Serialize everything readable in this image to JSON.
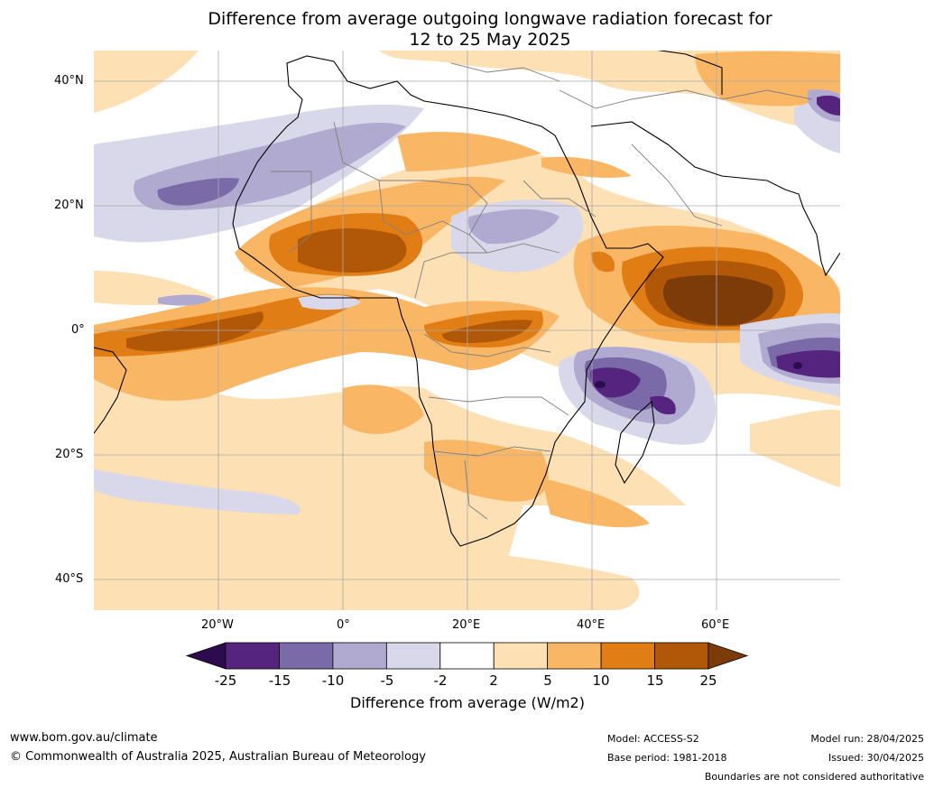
{
  "title_line1": "Difference from average outgoing longwave radiation forecast for",
  "title_line2": "12 to 25 May 2025",
  "lat_ticks": [
    "40°N",
    "20°N",
    "0°",
    "20°S",
    "40°S"
  ],
  "lon_ticks": [
    "20°W",
    "0°",
    "20°E",
    "40°E",
    "60°E"
  ],
  "colorbar": {
    "labels": [
      "-25",
      "-15",
      "-10",
      "-5",
      "-2",
      "2",
      "5",
      "10",
      "15",
      "25"
    ],
    "colors": [
      "#2d0b4e",
      "#54247f",
      "#7b6aa8",
      "#b0a9d0",
      "#d8d8ea",
      "#ffffff",
      "#fde0b4",
      "#f9b665",
      "#e07e15",
      "#b15708",
      "#7d3b0a"
    ],
    "title": "Difference from average (W/m2)"
  },
  "footer": {
    "url": "www.bom.gov.au/climate",
    "copyright": "© Commonwealth of Australia 2025, Australian Bureau of Meteorology",
    "model": "Model: ACCESS-S2",
    "base_period": "Base period: 1981-2018",
    "model_run": "Model run: 28/04/2025",
    "issued": "Issued: 30/04/2025",
    "boundaries_note": "Boundaries are not considered authoritative"
  }
}
